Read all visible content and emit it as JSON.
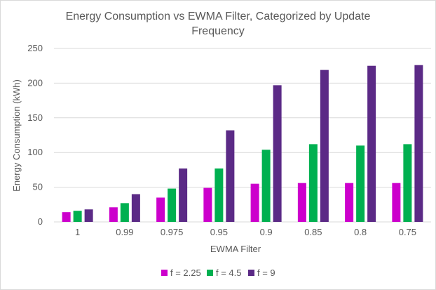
{
  "chart_data": {
    "type": "bar",
    "title": "Energy Consumption vs EWMA Filter, Categorized by Update Frequency",
    "title_lines": [
      "Energy Consumption vs EWMA Filter, Categorized by Update",
      "Frequency"
    ],
    "xlabel": "EWMA Filter",
    "ylabel": "Energy Consumption (kWh)",
    "ylim": [
      0,
      250
    ],
    "yticks": [
      0,
      50,
      100,
      150,
      200,
      250
    ],
    "grid": true,
    "legend_position": "bottom",
    "categories": [
      "1",
      "0.99",
      "0.975",
      "0.95",
      "0.9",
      "0.85",
      "0.8",
      "0.75"
    ],
    "series": [
      {
        "name": "f = 2.25",
        "color": "#cc00cc",
        "values": [
          14,
          21,
          35,
          49,
          55,
          56,
          56,
          56
        ]
      },
      {
        "name": "f = 4.5",
        "color": "#00b050",
        "values": [
          16,
          27,
          48,
          77,
          104,
          112,
          110,
          112
        ]
      },
      {
        "name": "f = 9",
        "color": "#5b2a86",
        "values": [
          18,
          40,
          77,
          132,
          197,
          219,
          225,
          226
        ]
      }
    ]
  }
}
